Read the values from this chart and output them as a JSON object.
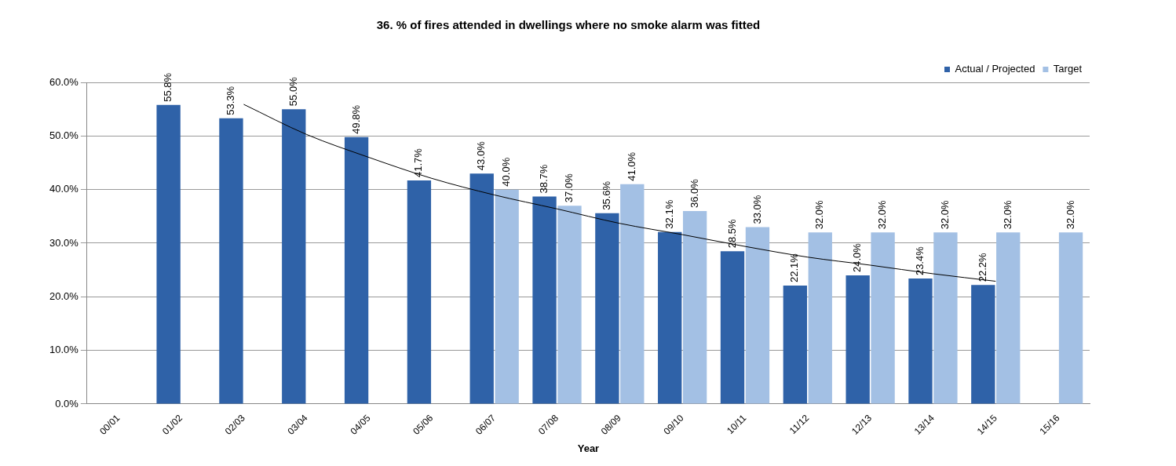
{
  "chart_data": {
    "type": "bar",
    "title": "36. % of fires attended in dwellings where no smoke alarm was fitted",
    "xlabel": "Year",
    "categories": [
      "00/01",
      "01/02",
      "02/03",
      "03/04",
      "04/05",
      "05/06",
      "06/07",
      "07/08",
      "08/09",
      "09/10",
      "10/11",
      "11/12",
      "12/13",
      "13/14",
      "14/15",
      "15/16"
    ],
    "series": [
      {
        "name": "Actual / Projected",
        "color": "#2f62a8",
        "values": [
          null,
          55.8,
          53.3,
          55.0,
          49.8,
          41.7,
          43.0,
          38.7,
          35.6,
          32.1,
          28.5,
          22.1,
          24.0,
          23.4,
          22.2,
          null
        ],
        "value_labels": [
          null,
          "55.8%",
          "53.3%",
          "55.0%",
          "49.8%",
          "41.7%",
          "43.0%",
          "38.7%",
          "35.6%",
          "32.1%",
          "28.5%",
          "22.1%",
          "24.0%",
          "23.4%",
          "22.2%",
          null
        ]
      },
      {
        "name": "Target",
        "color": "#a3c0e4",
        "values": [
          null,
          null,
          null,
          null,
          null,
          null,
          40.0,
          37.0,
          41.0,
          36.0,
          33.0,
          32.0,
          32.0,
          32.0,
          32.0,
          32.0
        ],
        "value_labels": [
          null,
          null,
          null,
          null,
          null,
          null,
          "40.0%",
          "37.0%",
          "41.0%",
          "36.0%",
          "33.0%",
          "32.0%",
          "32.0%",
          "32.0%",
          "32.0%",
          "32.0%"
        ]
      },
      {
        "type": "line",
        "color": "#000000",
        "values": [
          null,
          null,
          55.9,
          50.3,
          46.0,
          42.1,
          39.0,
          36.4,
          33.7,
          31.6,
          29.4,
          27.4,
          25.9,
          24.3,
          22.9,
          null
        ]
      }
    ],
    "ylim": [
      0,
      60
    ],
    "yticks": [
      {
        "value": 0,
        "label": "0.0%"
      },
      {
        "value": 10,
        "label": "10.0%"
      },
      {
        "value": 20,
        "label": "20.0%"
      },
      {
        "value": 30,
        "label": "30.0%"
      },
      {
        "value": 40,
        "label": "40.0%"
      },
      {
        "value": 50,
        "label": "50.0%"
      },
      {
        "value": 60,
        "label": "60.0%"
      }
    ],
    "grid": "y",
    "legend": "top right",
    "marker": "none"
  }
}
